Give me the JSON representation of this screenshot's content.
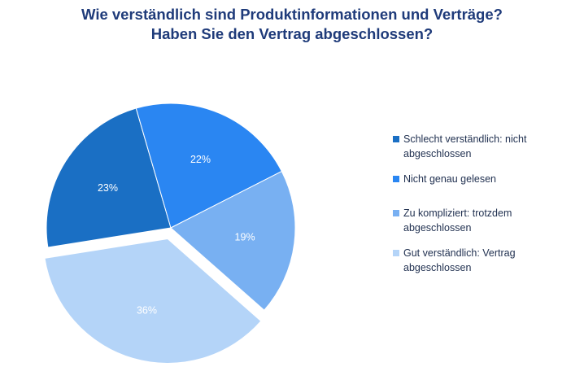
{
  "chart_data": {
    "type": "pie",
    "title": "Wie verständlich sind Produktinformationen und Verträge?",
    "subtitle": "Haben Sie den Vertrag abgeschlossen?",
    "categories": [
      "Schlecht verständlich: nicht abgeschlossen",
      "Nicht genau gelesen",
      "Zu kompliziert: trotzdem abgeschlossen",
      "Gut verständlich: Vertrag abgeschlossen"
    ],
    "values": [
      23,
      22,
      19,
      36
    ],
    "data_labels": [
      "23%",
      "22%",
      "19%",
      "36%"
    ],
    "colors": [
      "#1a6fc4",
      "#2a86f2",
      "#78b0f2",
      "#b4d4f8"
    ],
    "exploded_slice": 3,
    "legend_position": "right"
  }
}
